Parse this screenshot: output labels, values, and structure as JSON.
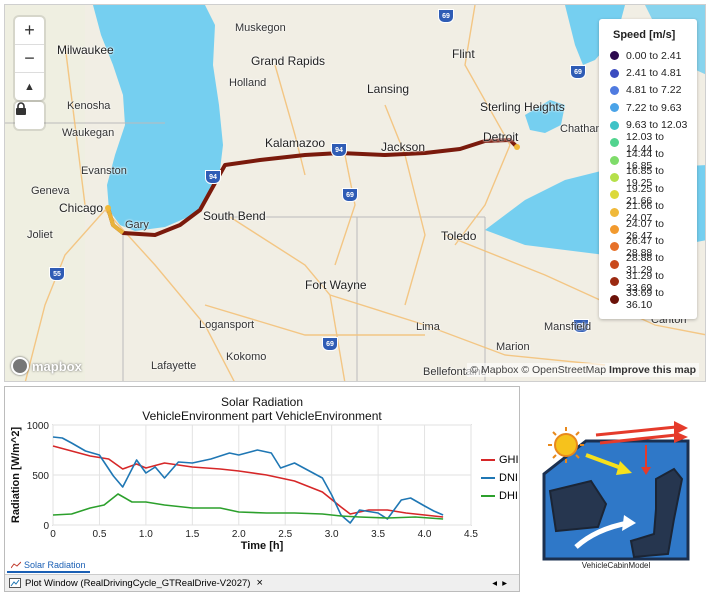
{
  "map": {
    "zoom_in": "+",
    "zoom_out": "−",
    "compass": "▲",
    "cities": [
      {
        "name": "Muskegon",
        "cls": ""
      },
      {
        "name": "Milwaukee",
        "cls": "big"
      },
      {
        "name": "Grand Rapids",
        "cls": "big"
      },
      {
        "name": "Flint",
        "cls": "big"
      },
      {
        "name": "Holland",
        "cls": ""
      },
      {
        "name": "Kenosha",
        "cls": ""
      },
      {
        "name": "Lansing",
        "cls": "big"
      },
      {
        "name": "Sterling Heights",
        "cls": "big"
      },
      {
        "name": "Waukegan",
        "cls": ""
      },
      {
        "name": "Kalamazoo",
        "cls": "big"
      },
      {
        "name": "Jackson",
        "cls": "big"
      },
      {
        "name": "Detroit",
        "cls": "big"
      },
      {
        "name": "Chatham",
        "cls": ""
      },
      {
        "name": "Evanston",
        "cls": ""
      },
      {
        "name": "Geneva",
        "cls": ""
      },
      {
        "name": "Chicago",
        "cls": "big"
      },
      {
        "name": "Gary",
        "cls": ""
      },
      {
        "name": "South Bend",
        "cls": "big"
      },
      {
        "name": "Joliet",
        "cls": ""
      },
      {
        "name": "Toledo",
        "cls": "big"
      },
      {
        "name": "Fort Wayne",
        "cls": "big"
      },
      {
        "name": "Logansport",
        "cls": ""
      },
      {
        "name": "Lima",
        "cls": ""
      },
      {
        "name": "Mansfield",
        "cls": ""
      },
      {
        "name": "Canton",
        "cls": ""
      },
      {
        "name": "Marion",
        "cls": ""
      },
      {
        "name": "Kokomo",
        "cls": ""
      },
      {
        "name": "Lafayette",
        "cls": ""
      },
      {
        "name": "Bellefontaine",
        "cls": ""
      }
    ],
    "shields": [
      "69",
      "94",
      "94",
      "69",
      "55",
      "69",
      "69",
      "75"
    ],
    "mapbox_logo": "mapbox",
    "attribution_prefix": "© Mapbox © OpenStreetMap",
    "attribution_link": "Improve this map"
  },
  "speed_legend": {
    "title": "Speed [m/s]",
    "items": [
      {
        "label": "0.00 to 2.41",
        "color": "#2d0a4e"
      },
      {
        "label": "2.41 to 4.81",
        "color": "#3b4cc0"
      },
      {
        "label": "4.81 to 7.22",
        "color": "#4f7be0"
      },
      {
        "label": "7.22 to 9.63",
        "color": "#4aa3e8"
      },
      {
        "label": "9.63 to 12.03",
        "color": "#3fc3c7"
      },
      {
        "label": "12.03 to 14.44",
        "color": "#52d48f"
      },
      {
        "label": "14.44 to 16.85",
        "color": "#7fdc6a"
      },
      {
        "label": "16.85 to 19.25",
        "color": "#b5e04a"
      },
      {
        "label": "19.25 to 21.66",
        "color": "#dcd93b"
      },
      {
        "label": "21.66 to 24.07",
        "color": "#f0b93a"
      },
      {
        "label": "24.07 to 26.47",
        "color": "#f29a2e"
      },
      {
        "label": "26.47 to 28.88",
        "color": "#e6712a"
      },
      {
        "label": "28.88 to 31.29",
        "color": "#c94a1d"
      },
      {
        "label": "31.29 to 33.69",
        "color": "#9c2a12"
      },
      {
        "label": "33.69 to 36.10",
        "color": "#6b1208"
      }
    ]
  },
  "plot": {
    "title_line1": "Solar Radiation",
    "title_line2": "VehicleEnvironment part VehicleEnvironment",
    "tab_label": "Solar Radiation",
    "window_label": "Plot Window (RealDrivingCycle_GTRealDrive-V2027)",
    "close_symbol": "×",
    "nav_left": "◂",
    "nav_right": "▸",
    "chart_data": {
      "type": "line",
      "xlabel": "Time [h]",
      "ylabel": "Radiation [W/m^2]",
      "xlim": [
        0,
        4.5
      ],
      "ylim": [
        0,
        1000
      ],
      "xticks": [
        "0",
        "0.5",
        "1.0",
        "1.5",
        "2.0",
        "2.5",
        "3.0",
        "3.5",
        "4.0",
        "4.5"
      ],
      "yticks": [
        "0",
        "500",
        "1000"
      ],
      "grid": true,
      "legend_position": "right",
      "series": [
        {
          "name": "GHI",
          "color": "#d62728",
          "x": [
            0,
            0.2,
            0.4,
            0.6,
            0.75,
            0.9,
            1.0,
            1.2,
            1.5,
            1.8,
            2.0,
            2.3,
            2.6,
            2.9,
            3.1,
            3.2,
            3.4,
            3.6,
            3.8,
            4.0,
            4.2
          ],
          "y": [
            790,
            740,
            690,
            660,
            560,
            610,
            570,
            620,
            580,
            560,
            540,
            500,
            440,
            330,
            180,
            110,
            150,
            150,
            120,
            100,
            80
          ]
        },
        {
          "name": "DNI",
          "color": "#1f77b4",
          "x": [
            0,
            0.1,
            0.2,
            0.35,
            0.5,
            0.65,
            0.75,
            0.9,
            1.0,
            1.1,
            1.2,
            1.35,
            1.5,
            1.7,
            1.9,
            2.0,
            2.2,
            2.35,
            2.45,
            2.6,
            2.8,
            2.9,
            3.0,
            3.1,
            3.2,
            3.3,
            3.5,
            3.6,
            3.75,
            3.85,
            4.0,
            4.1,
            4.2
          ],
          "y": [
            880,
            870,
            820,
            740,
            700,
            490,
            380,
            650,
            520,
            580,
            470,
            630,
            620,
            660,
            720,
            700,
            750,
            720,
            570,
            620,
            520,
            470,
            300,
            100,
            20,
            150,
            120,
            60,
            250,
            270,
            190,
            140,
            100
          ]
        },
        {
          "name": "DHI",
          "color": "#2ca02c",
          "x": [
            0,
            0.2,
            0.4,
            0.55,
            0.7,
            0.85,
            1.0,
            1.2,
            1.5,
            1.8,
            2.0,
            2.3,
            2.6,
            2.9,
            3.1,
            3.3,
            3.6,
            3.9,
            4.2
          ],
          "y": [
            100,
            110,
            170,
            200,
            310,
            230,
            230,
            200,
            170,
            170,
            130,
            120,
            120,
            110,
            90,
            80,
            70,
            80,
            60
          ]
        }
      ]
    }
  },
  "cabin": {
    "label": "VehicleCabinModel"
  }
}
